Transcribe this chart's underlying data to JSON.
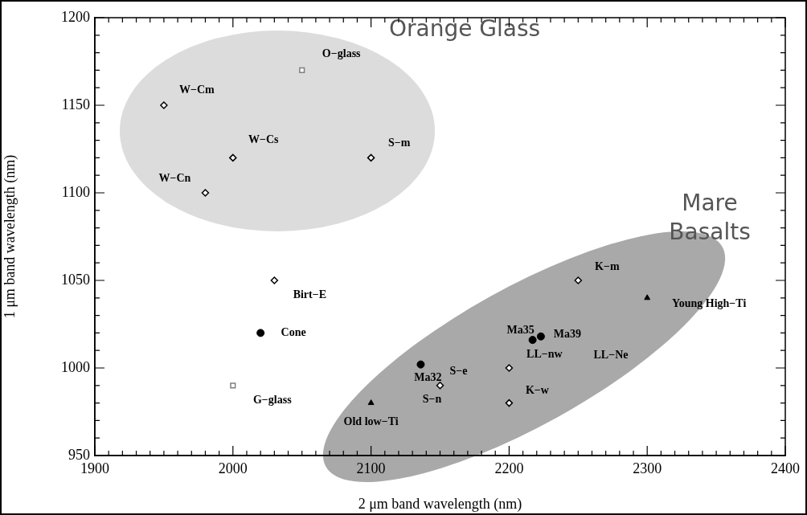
{
  "chart_data": {
    "type": "scatter",
    "xlabel": "2 μm band wavelength (nm)",
    "ylabel": "1 μm band wavelength (nm)",
    "xlim": [
      1900,
      2400
    ],
    "ylim": [
      950,
      1200
    ],
    "xticks": [
      1900,
      {
        "value": 1910,
        "label": null
      },
      {
        "value": 1920,
        "label": null
      },
      {
        "value": 1930,
        "label": null
      },
      {
        "value": 1940,
        "label": null
      },
      {
        "value": 1950,
        "label": null
      },
      {
        "value": 1960,
        "label": null
      },
      {
        "value": 1970,
        "label": null
      },
      {
        "value": 1980,
        "label": null
      },
      {
        "value": 1990,
        "label": null
      },
      2000,
      {
        "value": 2010,
        "label": null
      },
      {
        "value": 2020,
        "label": null
      },
      {
        "value": 2030,
        "label": null
      },
      {
        "value": 2040,
        "label": null
      },
      {
        "value": 2050,
        "label": null
      },
      {
        "value": 2060,
        "label": null
      },
      {
        "value": 2070,
        "label": null
      },
      {
        "value": 2080,
        "label": null
      },
      {
        "value": 2090,
        "label": null
      },
      2100,
      {
        "value": 2110,
        "label": null
      },
      {
        "value": 2120,
        "label": null
      },
      {
        "value": 2130,
        "label": null
      },
      {
        "value": 2140,
        "label": null
      },
      {
        "value": 2150,
        "label": null
      },
      {
        "value": 2160,
        "label": null
      },
      {
        "value": 2170,
        "label": null
      },
      {
        "value": 2180,
        "label": null
      },
      {
        "value": 2190,
        "label": null
      },
      2200,
      {
        "value": 2210,
        "label": null
      },
      {
        "value": 2220,
        "label": null
      },
      {
        "value": 2230,
        "label": null
      },
      {
        "value": 2240,
        "label": null
      },
      {
        "value": 2250,
        "label": null
      },
      {
        "value": 2260,
        "label": null
      },
      {
        "value": 2270,
        "label": null
      },
      {
        "value": 2280,
        "label": null
      },
      {
        "value": 2290,
        "label": null
      },
      2300,
      {
        "value": 2310,
        "label": null
      },
      {
        "value": 2320,
        "label": null
      },
      {
        "value": 2330,
        "label": null
      },
      {
        "value": 2340,
        "label": null
      },
      {
        "value": 2350,
        "label": null
      },
      {
        "value": 2360,
        "label": null
      },
      {
        "value": 2370,
        "label": null
      },
      {
        "value": 2380,
        "label": null
      },
      {
        "value": 2390,
        "label": null
      },
      2400
    ],
    "yticks": [
      950,
      {
        "value": 960,
        "label": null
      },
      {
        "value": 970,
        "label": null
      },
      {
        "value": 980,
        "label": null
      },
      {
        "value": 990,
        "label": null
      },
      1000,
      {
        "value": 1010,
        "label": null
      },
      {
        "value": 1020,
        "label": null
      },
      {
        "value": 1030,
        "label": null
      },
      {
        "value": 1040,
        "label": null
      },
      1050,
      {
        "value": 1060,
        "label": null
      },
      {
        "value": 1070,
        "label": null
      },
      {
        "value": 1080,
        "label": null
      },
      {
        "value": 1090,
        "label": null
      },
      1100,
      {
        "value": 1110,
        "label": null
      },
      {
        "value": 1120,
        "label": null
      },
      {
        "value": 1130,
        "label": null
      },
      {
        "value": 1140,
        "label": null
      },
      1150,
      {
        "value": 1160,
        "label": null
      },
      {
        "value": 1170,
        "label": null
      },
      {
        "value": 1180,
        "label": null
      },
      {
        "value": 1190,
        "label": null
      },
      1200
    ],
    "series": [
      {
        "marker": "diamond",
        "color": "#000000",
        "x": [
          1950,
          2000,
          1980,
          2100,
          2030,
          2150,
          2200,
          2200,
          2250
        ],
        "values": [
          1150,
          1120,
          1100,
          1120,
          1050,
          990,
          1000,
          980,
          1050
        ]
      },
      {
        "marker": "square",
        "color": "#7f7f7f",
        "x": [
          2050,
          2000
        ],
        "values": [
          1170,
          990
        ]
      },
      {
        "marker": "triangle",
        "color": "#000000",
        "x": [
          2100,
          2300
        ],
        "values": [
          980,
          1040
        ]
      },
      {
        "marker": "circle",
        "color": "#000000",
        "x": [
          2020,
          2136,
          2217,
          2223
        ],
        "values": [
          1020,
          1002,
          1016,
          1018
        ]
      }
    ],
    "annotations": [
      "Orange Glass",
      "Mare Basalts",
      "LL−Ne",
      {
        "text": "O−glass",
        "x": 2050,
        "y": 1170
      },
      {
        "text": "W−Cm",
        "x": 1950,
        "y": 1150
      },
      {
        "text": "W−Cs",
        "x": 2000,
        "y": 1120
      },
      {
        "text": "S−m",
        "x": 2100,
        "y": 1120
      },
      {
        "text": "W−Cn",
        "x": 1980,
        "y": 1100
      },
      {
        "text": "Birt−E",
        "x": 2030,
        "y": 1050
      },
      {
        "text": "Cone",
        "x": 2020,
        "y": 1020
      },
      {
        "text": "G−glass",
        "x": 2000,
        "y": 990
      },
      {
        "text": "Old low−Ti",
        "x": 2100,
        "y": 980
      },
      {
        "text": "Ma32",
        "x": 2136,
        "y": 1002
      },
      {
        "text": "S−e",
        "x": 2150,
        "y": 990
      },
      {
        "text": "S−n",
        "x": 2150,
        "y": 990
      },
      {
        "text": "K−m",
        "x": 2250,
        "y": 1050
      },
      {
        "text": "Young High−Ti",
        "x": 2300,
        "y": 1040
      },
      {
        "text": "Ma35",
        "x": 2217,
        "y": 1016
      },
      {
        "text": "Ma39",
        "x": 2223,
        "y": 1018
      },
      {
        "text": "LL−nw",
        "x": 2200,
        "y": 1000
      },
      {
        "text": "K−w",
        "x": 2200,
        "y": 980
      }
    ]
  }
}
